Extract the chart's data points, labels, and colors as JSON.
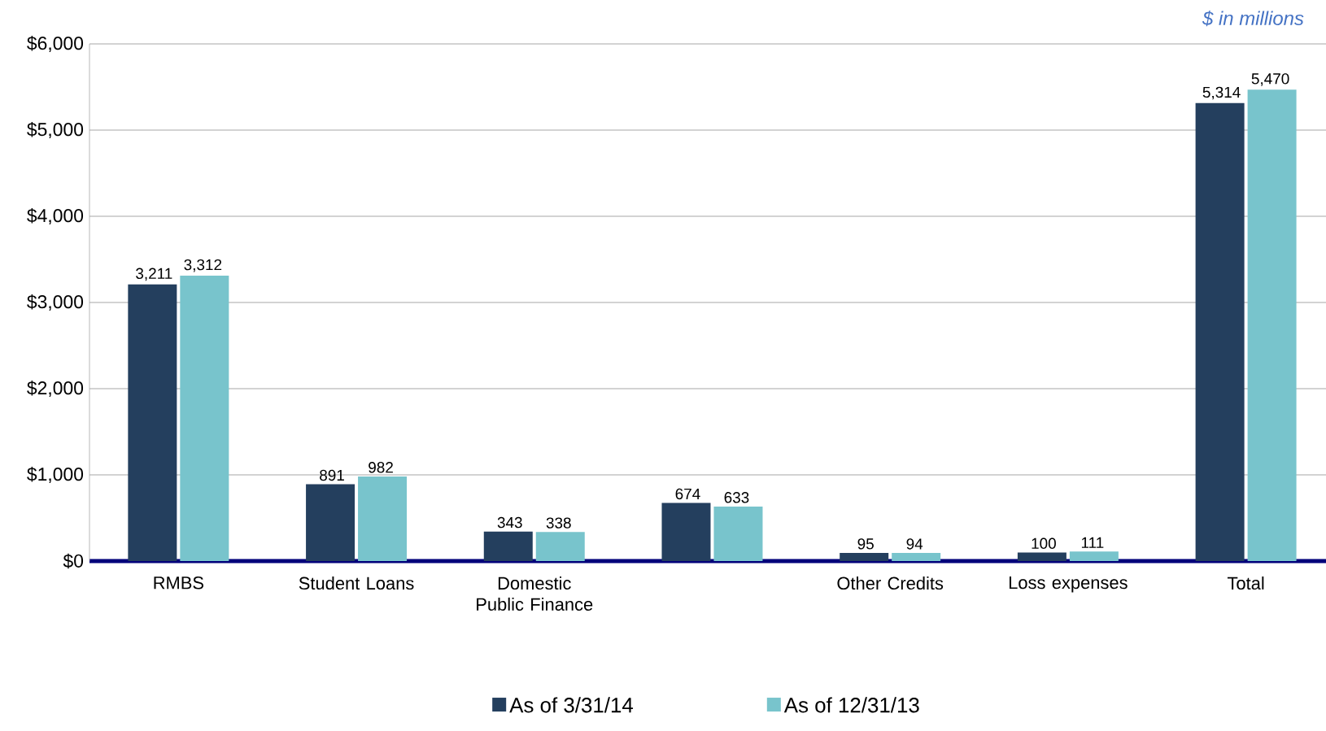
{
  "chart_data": {
    "type": "bar",
    "annotations": [
      "$ in millions"
    ],
    "categories": [
      "RMBS",
      "Student Loans",
      "Domestic Public Finance",
      null,
      "Other Credits",
      "Loss expenses",
      "Total"
    ],
    "series": [
      {
        "name": "As of 3/31/14",
        "color": "#243f5e",
        "values": [
          3211,
          891,
          343,
          674,
          95,
          100,
          5314
        ],
        "value_labels": [
          "3,211",
          "891",
          "343",
          "674",
          "95",
          "100",
          "5,314"
        ]
      },
      {
        "name": "As of 12/31/13",
        "color": "#78c4cc",
        "values": [
          3312,
          982,
          338,
          633,
          94,
          111,
          5470
        ],
        "value_labels": [
          "3,312",
          "982",
          "338",
          "633",
          "94",
          "111",
          "5,470"
        ]
      }
    ],
    "ylim": [
      0,
      6000
    ],
    "yticks": [
      {
        "value": 0,
        "label": "$0"
      },
      {
        "value": 1000,
        "label": "$1,000"
      },
      {
        "value": 2000,
        "label": "$2,000"
      },
      {
        "value": 3000,
        "label": "$3,000"
      },
      {
        "value": 4000,
        "label": "$4,000"
      },
      {
        "value": 5000,
        "label": "$5,000"
      },
      {
        "value": 6000,
        "label": "$6,000"
      }
    ],
    "grid": "y",
    "legend": "bottom"
  }
}
